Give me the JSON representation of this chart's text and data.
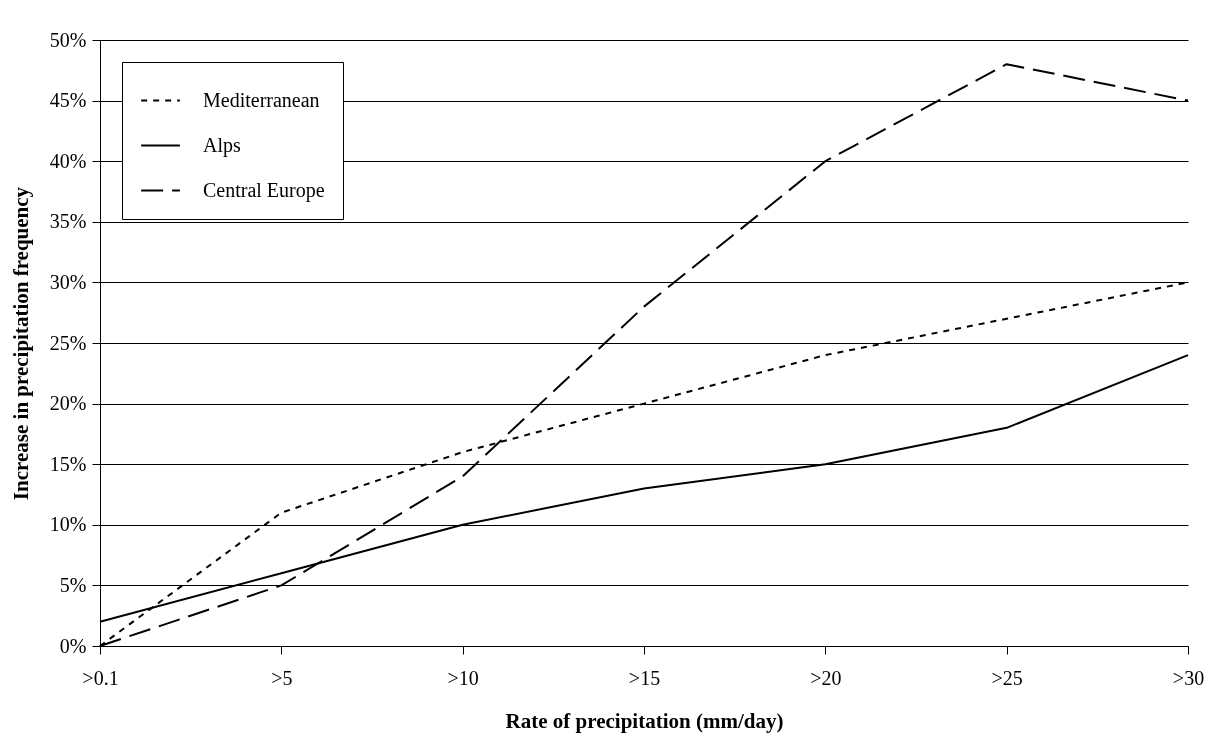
{
  "chart_data": {
    "type": "line",
    "xlabel": "Rate of precipitation (mm/day)",
    "ylabel": "Increase in precipitation frequency",
    "categories": [
      ">0.1",
      ">5",
      ">10",
      ">15",
      ">20",
      ">25",
      ">30"
    ],
    "series": [
      {
        "name": "Mediterranean",
        "color": "#000000",
        "line_style": "dotted",
        "values": [
          0,
          11,
          16,
          20,
          24,
          27,
          30
        ]
      },
      {
        "name": "Alps",
        "color": "#000000",
        "line_style": "solid",
        "values": [
          2,
          6,
          10,
          13,
          15,
          18,
          24
        ]
      },
      {
        "name": "Central Europe",
        "color": "#000000",
        "line_style": "dashed",
        "values": [
          0,
          5,
          14,
          28,
          40,
          48,
          45
        ]
      }
    ],
    "ylim": [
      0,
      50
    ],
    "yticks": [
      {
        "value": 0,
        "label": "0%"
      },
      {
        "value": 5,
        "label": "5%"
      },
      {
        "value": 10,
        "label": "10%"
      },
      {
        "value": 15,
        "label": "15%"
      },
      {
        "value": 20,
        "label": "20%"
      },
      {
        "value": 25,
        "label": "25%"
      },
      {
        "value": 30,
        "label": "30%"
      },
      {
        "value": 35,
        "label": "35%"
      },
      {
        "value": 40,
        "label": "40%"
      },
      {
        "value": 45,
        "label": "45%"
      },
      {
        "value": 50,
        "label": "50%"
      }
    ],
    "grid": "y",
    "legend": "top left",
    "marker": "none"
  }
}
